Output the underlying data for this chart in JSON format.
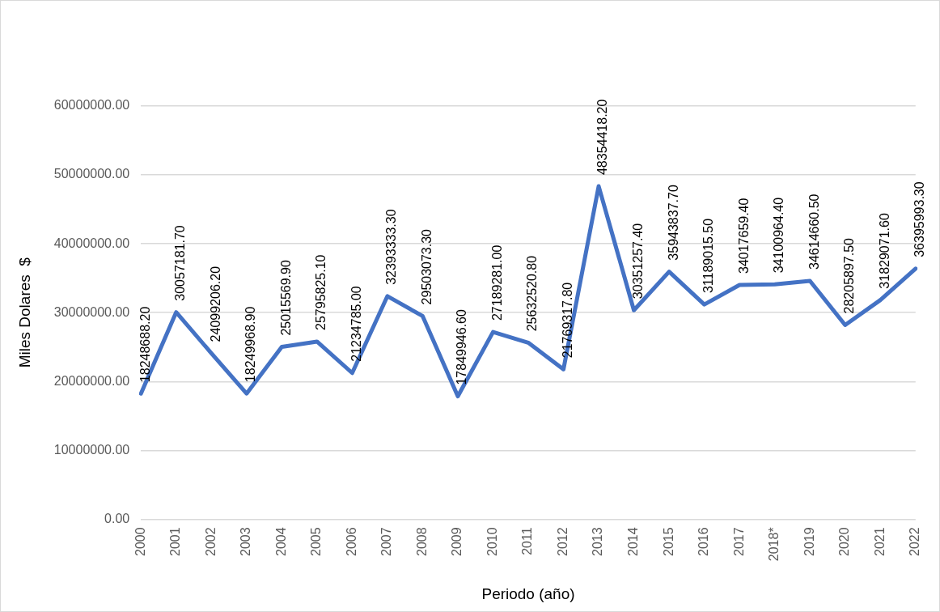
{
  "chart_data": {
    "type": "line",
    "xlabel": "Periodo (año)",
    "ylabel": "Miles Dolares  $",
    "categories": [
      "2000",
      "2001",
      "2002",
      "2003",
      "2004",
      "2005",
      "2006",
      "2007",
      "2008",
      "2009",
      "2010",
      "2011",
      "2012",
      "2013",
      "2014",
      "2015",
      "2016",
      "2017",
      "2018*",
      "2019",
      "2020",
      "2021",
      "2022"
    ],
    "series": [
      {
        "color": "#4472c4",
        "values": [
          18248688.2,
          30057181.7,
          24099206.2,
          18249968.9,
          25015569.9,
          25795825.1,
          21234785.0,
          32393333.3,
          29503073.3,
          17849946.6,
          27189281.0,
          25632520.8,
          21769317.8,
          48354418.2,
          30351257.4,
          35943837.7,
          31189015.5,
          34017659.4,
          34100964.4,
          34614660.5,
          28205897.5,
          31829071.6,
          36395993.3
        ],
        "value_labels": [
          "18248688.20",
          "30057181.70",
          "24099206.20",
          "18249968.90",
          "25015569.90",
          "25795825.10",
          "21234785.00",
          "32393333.30",
          "29503073.30",
          "17849946.60",
          "27189281.00",
          "25632520.80",
          "21769317.80",
          "48354418.20",
          "30351257.40",
          "35943837.70",
          "31189015.50",
          "34017659.40",
          "34100964.40",
          "34614660.50",
          "28205897.50",
          "31829071.60",
          "36395993.30"
        ]
      }
    ],
    "ylim": [
      0,
      60000000
    ],
    "yticks": [
      {
        "value": 0,
        "label": "0.00"
      },
      {
        "value": 10000000,
        "label": "10000000.00"
      },
      {
        "value": 20000000,
        "label": "20000000.00"
      },
      {
        "value": 30000000,
        "label": "30000000.00"
      },
      {
        "value": 40000000,
        "label": "40000000.00"
      },
      {
        "value": 50000000,
        "label": "50000000.00"
      },
      {
        "value": 60000000,
        "label": "60000000.00"
      }
    ],
    "grid": "y",
    "legend": false,
    "marker": "none",
    "line_style": "solid"
  }
}
